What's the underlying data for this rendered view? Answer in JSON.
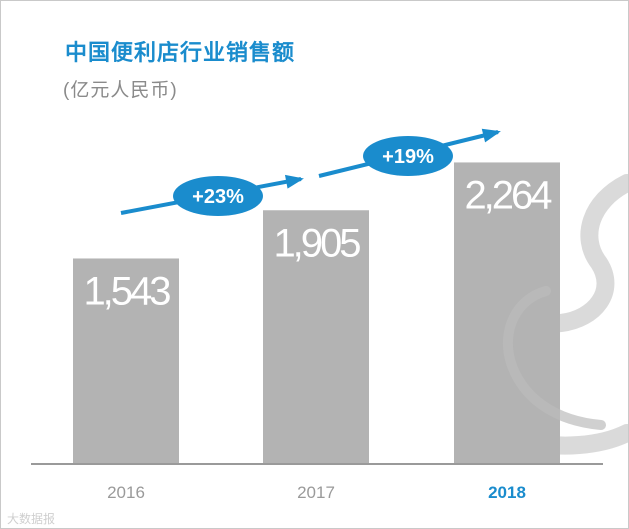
{
  "title": "中国便利店行业销售额",
  "subtitle": "(亿元人民币)",
  "watermark": "大数据报",
  "colors": {
    "title": "#1a8ccd",
    "bar": "#b3b3b3",
    "bar_text": "#ffffff",
    "axis": "#9a9a9a",
    "tick": "#9a9a9a",
    "tick_highlight": "#1a8ccd",
    "arrow": "#1a8ccd",
    "badge": "#1a8ccd",
    "badge_text": "#ffffff",
    "decoration": "#bcbcbc"
  },
  "chart_data": {
    "type": "bar",
    "title": "中国便利店行业销售额",
    "subtitle": "(亿元人民币)",
    "categories": [
      "2016",
      "2017",
      "2018"
    ],
    "values": [
      1543,
      1905,
      2264
    ],
    "data_labels": [
      "1,543",
      "1,905",
      "2,264"
    ],
    "highlight_category": "2018",
    "ylim": [
      0,
      2500
    ],
    "grid": false,
    "annotations": [
      {
        "label": "+23%",
        "from": "2016",
        "to": "2017"
      },
      {
        "label": "+19%",
        "from": "2017",
        "to": "2018"
      }
    ]
  }
}
